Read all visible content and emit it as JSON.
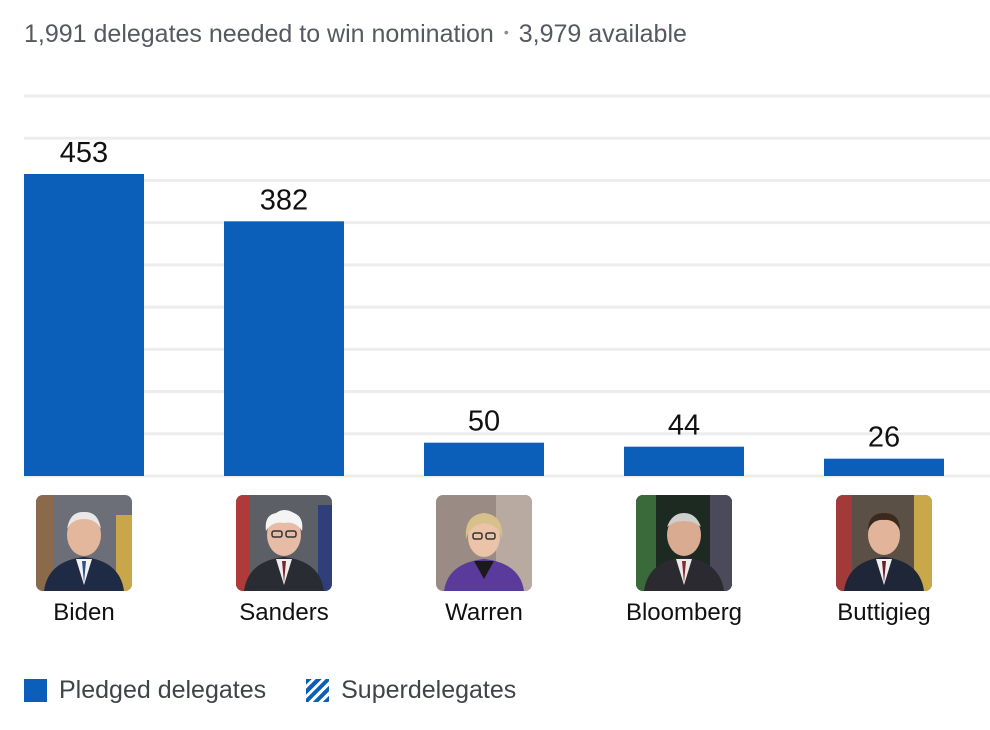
{
  "header": {
    "needed_text": "1,991 delegates needed to win nomination",
    "separator": "•",
    "available_text": "3,979 available"
  },
  "chart_data": {
    "type": "bar",
    "title": "",
    "xlabel": "",
    "ylabel": "",
    "categories": [
      "Biden",
      "Sanders",
      "Warren",
      "Bloomberg",
      "Buttigieg"
    ],
    "series": [
      {
        "name": "Pledged delegates",
        "values": [
          453,
          382,
          50,
          44,
          26
        ]
      },
      {
        "name": "Superdelegates",
        "values": [
          0,
          0,
          0,
          0,
          0
        ]
      }
    ],
    "data_labels": [
      "453",
      "382",
      "50",
      "44",
      "26"
    ],
    "ylim": [
      0,
      570
    ],
    "grid": true,
    "legend_position": "bottom-left",
    "bar_color": "#0b5fb8"
  },
  "candidates": [
    {
      "name": "Biden",
      "photo": "biden-portrait"
    },
    {
      "name": "Sanders",
      "photo": "sanders-portrait"
    },
    {
      "name": "Warren",
      "photo": "warren-portrait"
    },
    {
      "name": "Bloomberg",
      "photo": "bloomberg-portrait"
    },
    {
      "name": "Buttigieg",
      "photo": "buttigieg-portrait"
    }
  ],
  "legend": {
    "pledged_label": "Pledged delegates",
    "super_label": "Superdelegates"
  }
}
